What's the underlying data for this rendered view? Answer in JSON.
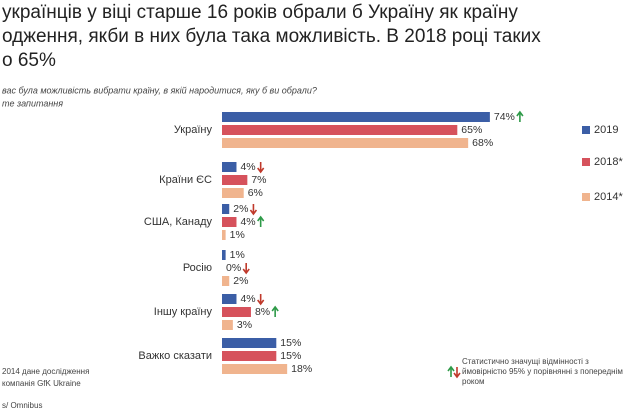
{
  "chart_data": {
    "type": "bar",
    "orientation": "horizontal",
    "title": [
      "українців у віці старше 16 років обрали б Україну як країну",
      "одження, якби в них була така можливість. В 2018 році таких",
      "о 65%"
    ],
    "subtitle": [
      "вас була можливість вибрати країну, в якій народитися, яку б ви обрали?",
      "те запитання"
    ],
    "categories": [
      "Україну",
      "Країни ЄС",
      "США, Канаду",
      "Росію",
      "Іншу країну",
      "Важко сказати"
    ],
    "series": [
      {
        "name": "2019",
        "color": "#3b5ea6",
        "values": [
          74,
          4,
          2,
          1,
          4,
          15
        ],
        "value_labels": [
          "74%",
          "4%",
          "2%",
          "1%",
          "4%",
          "15%"
        ],
        "significance": [
          "up",
          "down",
          "down",
          null,
          "down",
          null
        ]
      },
      {
        "name": "2018*",
        "color": "#d6525c",
        "values": [
          65,
          7,
          4,
          0,
          8,
          15
        ],
        "value_labels": [
          "65%",
          "7%",
          "4%",
          "0%",
          "8%",
          "15%"
        ],
        "significance": [
          null,
          null,
          "up",
          "down",
          "up",
          null
        ]
      },
      {
        "name": "2014*",
        "color": "#f0b48e",
        "values": [
          68,
          6,
          1,
          2,
          3,
          18
        ],
        "value_labels": [
          "68%",
          "6%",
          "1%",
          "2%",
          "3%",
          "18%"
        ],
        "significance": [
          null,
          null,
          null,
          null,
          null,
          null
        ]
      }
    ],
    "notes": [
      "2014 дане дослідження",
      "компанія GfK Ukraine",
      "s/ Omnibus"
    ],
    "significance_note": [
      "Статистично значущі відмінності з",
      "ймовірністю 95% у порівнянні з попереднім",
      "роком"
    ]
  }
}
